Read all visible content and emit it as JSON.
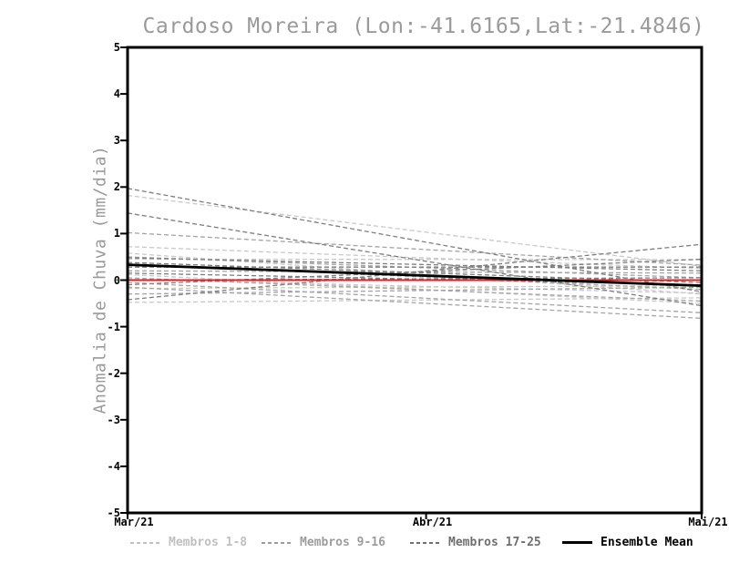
{
  "window": {
    "background": "#ffffff"
  },
  "chart_data": {
    "type": "line",
    "title": "Cardoso Moreira (Lon:-41.6165,Lat:-21.4846)",
    "title_color": "#9a9a9a",
    "ylabel": "Anomalia de Chuva (mm/dia)",
    "xlabel": "",
    "ylim": [
      -5,
      5
    ],
    "grid": false,
    "y_ticks": [
      5,
      4,
      3,
      2,
      1,
      0,
      -1,
      -2,
      -3,
      -4,
      -5
    ],
    "x_ticks": [
      {
        "label": "Mar/21",
        "fraction": 0
      },
      {
        "label": "Abr/21",
        "fraction": 0.52
      },
      {
        "label": "Mai/21",
        "fraction": 1
      }
    ],
    "reference_line": {
      "value": 0,
      "color": "#e02020"
    },
    "ensemble_mean": {
      "label": "Ensemble Mean",
      "color": "#000000",
      "start": 0.33,
      "end": -0.12
    },
    "member_groups": [
      {
        "label": "Membros 1-8",
        "color": "#c9c9c9",
        "line_style": "dashed",
        "members": [
          {
            "start": 1.82,
            "end": 0.3
          },
          {
            "start": 0.72,
            "end": 0.25
          },
          {
            "start": 0.58,
            "end": -0.3
          },
          {
            "start": 0.45,
            "end": 0.44
          },
          {
            "start": 0.12,
            "end": -0.5
          },
          {
            "start": 0.02,
            "end": -0.28
          },
          {
            "start": -0.18,
            "end": -0.12
          },
          {
            "start": -0.48,
            "end": -0.38
          }
        ]
      },
      {
        "label": "Membros 9-16",
        "color": "#a4a4a4",
        "line_style": "dashed",
        "members": [
          {
            "start": 1.02,
            "end": 0.32
          },
          {
            "start": 0.5,
            "end": 0.05
          },
          {
            "start": 0.35,
            "end": -0.2
          },
          {
            "start": 0.2,
            "end": 0.15
          },
          {
            "start": 0.05,
            "end": -0.45
          },
          {
            "start": -0.05,
            "end": -0.7
          },
          {
            "start": -0.15,
            "end": -0.82
          },
          {
            "start": -0.3,
            "end": -0.15
          }
        ]
      },
      {
        "label": "Membros 17-25",
        "color": "#7e7e7e",
        "line_style": "dashed",
        "members": [
          {
            "start": 1.97,
            "end": -0.25
          },
          {
            "start": 1.44,
            "end": -0.55
          },
          {
            "start": 0.48,
            "end": 0.2
          },
          {
            "start": 0.38,
            "end": -0.05
          },
          {
            "start": 0.28,
            "end": 0.28
          },
          {
            "start": 0.15,
            "end": -0.1
          },
          {
            "start": 0.0,
            "end": 0.05
          },
          {
            "start": -0.1,
            "end": 0.45
          },
          {
            "start": -0.42,
            "end": 0.77
          }
        ]
      }
    ],
    "legend": [
      {
        "label": "Membros 1-8",
        "color": "#c0c0c0",
        "style": "dashed"
      },
      {
        "label": "Membros 9-16",
        "color": "#9c9c9c",
        "style": "dashed"
      },
      {
        "label": "Membros 17-25",
        "color": "#6f6f6f",
        "style": "dashed"
      },
      {
        "label": "Ensemble Mean",
        "color": "#000000",
        "style": "solid"
      }
    ]
  }
}
